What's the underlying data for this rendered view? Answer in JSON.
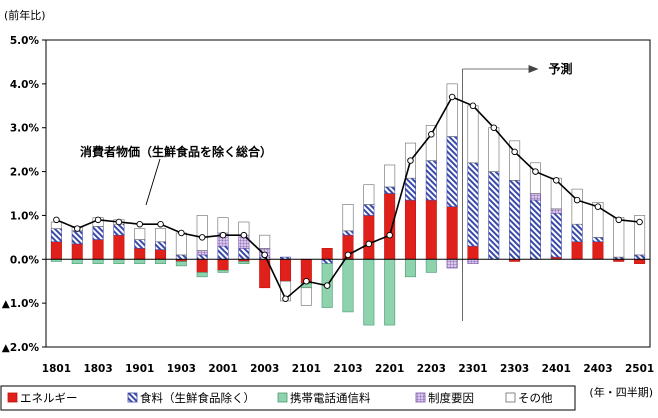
{
  "chart_data": {
    "type": "bar",
    "ylabel": "(前年比)",
    "xunit": "(年・四半期)",
    "ylim": [
      -2.0,
      5.0
    ],
    "yticks": [
      {
        "v": 5.0,
        "label": "5.0%"
      },
      {
        "v": 4.0,
        "label": "4.0%"
      },
      {
        "v": 3.0,
        "label": "3.0%"
      },
      {
        "v": 2.0,
        "label": "2.0%"
      },
      {
        "v": 1.0,
        "label": "1.0%"
      },
      {
        "v": 0.0,
        "label": "0.0%"
      },
      {
        "v": -1.0,
        "label": "▲1.0%"
      },
      {
        "v": -2.0,
        "label": "▲2.0%"
      }
    ],
    "categories": [
      "1801",
      "1802",
      "1803",
      "1804",
      "1901",
      "1902",
      "1903",
      "1904",
      "2001",
      "2002",
      "2003",
      "2004",
      "2101",
      "2102",
      "2103",
      "2104",
      "2201",
      "2202",
      "2203",
      "2204",
      "2301",
      "2302",
      "2303",
      "2304",
      "2401",
      "2402",
      "2403",
      "2404",
      "2501"
    ],
    "tick_labels": [
      "1801",
      "1803",
      "1901",
      "1903",
      "2001",
      "2003",
      "2101",
      "2103",
      "2201",
      "2203",
      "2301",
      "2303",
      "2401",
      "2403",
      "2501"
    ],
    "forecast_start_index": 20,
    "forecast_label": "予測",
    "line_label": "消費者物価（生鮮食品を除く総合）",
    "series": [
      {
        "name": "エネルギー",
        "key": "energy",
        "color": "#e0201b",
        "values": [
          0.4,
          0.35,
          0.45,
          0.55,
          0.25,
          0.22,
          -0.05,
          -0.3,
          -0.25,
          -0.05,
          -0.65,
          -0.5,
          -0.55,
          0.25,
          0.55,
          1.0,
          1.5,
          1.35,
          1.35,
          1.2,
          0.3,
          0.0,
          -0.05,
          0.0,
          0.05,
          0.4,
          0.4,
          -0.05,
          -0.1
        ]
      },
      {
        "name": "食料（生鮮食品除く）",
        "key": "food",
        "color": "#3a4aa8",
        "values": [
          0.3,
          0.3,
          0.3,
          0.25,
          0.2,
          0.18,
          0.1,
          0.1,
          0.3,
          0.25,
          0.05,
          0.05,
          0.0,
          -0.1,
          0.1,
          0.25,
          0.15,
          0.5,
          0.9,
          1.6,
          1.9,
          2.0,
          1.8,
          1.35,
          1.0,
          0.4,
          0.1,
          0.05,
          0.1
        ]
      },
      {
        "name": "携帯電話通信料",
        "key": "mobile",
        "color": "#7fcaa0",
        "values": [
          -0.05,
          -0.1,
          -0.1,
          -0.1,
          -0.1,
          -0.1,
          -0.1,
          -0.1,
          -0.05,
          -0.05,
          0.0,
          0.0,
          -0.1,
          -1.0,
          -1.2,
          -1.5,
          -1.5,
          -0.4,
          -0.3,
          0.0,
          0.0,
          0.0,
          0.0,
          0.0,
          0.0,
          0.0,
          0.0,
          0.0,
          0.0
        ]
      },
      {
        "name": "制度要因",
        "key": "policy",
        "color": "#9a7ab8",
        "values": [
          0.0,
          0.0,
          0.0,
          0.0,
          0.0,
          0.0,
          0.0,
          0.1,
          0.3,
          0.3,
          0.2,
          0.0,
          0.0,
          0.0,
          0.0,
          0.0,
          0.0,
          0.0,
          0.0,
          -0.2,
          -0.1,
          0.0,
          0.0,
          0.15,
          0.1,
          0.0,
          0.0,
          0.0,
          0.0
        ]
      },
      {
        "name": "その他",
        "key": "other",
        "color": "#ffffff",
        "values": [
          0.15,
          0.1,
          0.2,
          0.1,
          0.25,
          0.3,
          0.5,
          0.8,
          0.35,
          0.3,
          0.3,
          -0.45,
          -0.4,
          0.0,
          0.6,
          0.45,
          0.5,
          0.8,
          0.8,
          1.2,
          1.3,
          1.0,
          0.9,
          0.7,
          0.7,
          0.8,
          0.8,
          0.9,
          0.9
        ]
      }
    ],
    "line": {
      "name": "消費者物価（生鮮食品を除く総合）",
      "values": [
        0.9,
        0.7,
        0.9,
        0.85,
        0.8,
        0.8,
        0.6,
        0.5,
        0.55,
        0.55,
        0.1,
        -0.9,
        -0.5,
        -0.6,
        0.1,
        0.35,
        0.55,
        2.25,
        2.85,
        3.7,
        3.5,
        3.0,
        2.45,
        2.0,
        1.8,
        1.35,
        1.2,
        0.9,
        0.85
      ]
    },
    "grid": false,
    "legend": "bottom"
  }
}
